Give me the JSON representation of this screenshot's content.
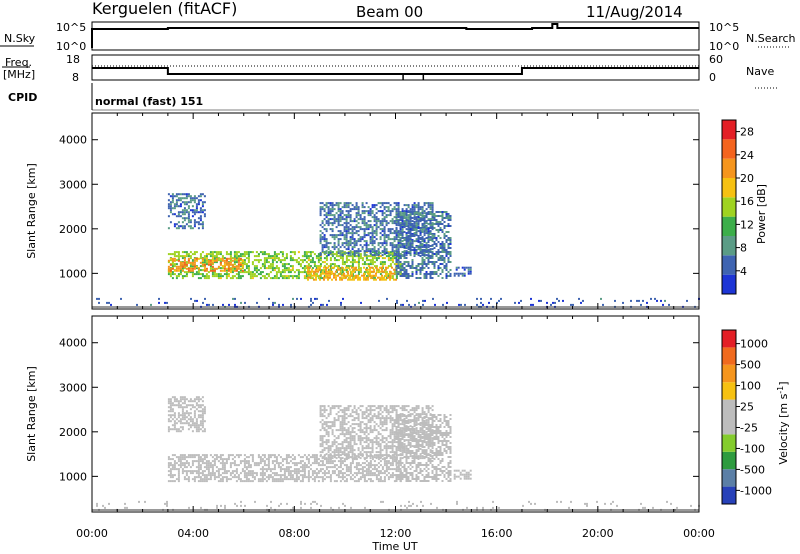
{
  "header": {
    "station": "Kerguelen (fitACF)",
    "beam": "Beam 00",
    "date": "11/Aug/2014"
  },
  "panels": {
    "nsky": {
      "left_label": "N.Sky",
      "left_ticks": [
        "10^5",
        "10^0"
      ],
      "right_ticks": [
        "10^5",
        "10^0"
      ],
      "right_label": "N.Search"
    },
    "freq": {
      "left_label": "Freq.",
      "left_unit": "[MHz]",
      "left_ticks": [
        "18",
        "8"
      ],
      "right_ticks": [
        "60",
        "0"
      ],
      "right_label": "Nave"
    },
    "cpid": {
      "label": "CPID",
      "mode": "normal (fast) 151"
    }
  },
  "time_axis": {
    "title": "Time UT",
    "ticks": [
      "00:00",
      "04:00",
      "08:00",
      "12:00",
      "16:00",
      "20:00",
      "00:00"
    ]
  },
  "colors": {
    "power": [
      "#1d35d5",
      "#3f64b1",
      "#5b9c86",
      "#3cae4a",
      "#9fd321",
      "#f6c112",
      "#f5951d",
      "#f4641e",
      "#e31f26"
    ],
    "velocity": [
      "#e31f26",
      "#f06a1e",
      "#f5951d",
      "#f6c112",
      "#bdbdbd",
      "#bdbdbd",
      "#84cc2d",
      "#2e9b3f",
      "#5b7fa6",
      "#2741b9"
    ]
  },
  "chart_data": [
    {
      "type": "heatmap",
      "title": "",
      "xlabel": "Time UT",
      "ylabel": "Slant Range [km]",
      "x_ticks": [
        "00:00",
        "04:00",
        "08:00",
        "12:00",
        "16:00",
        "20:00",
        "00:00"
      ],
      "y_ticks": [
        1000,
        2000,
        3000,
        4000
      ],
      "xlim_hours": [
        0,
        24
      ],
      "ylim": [
        200,
        4600
      ],
      "colorbar": {
        "label": "Power [dB]",
        "ticks": [
          4,
          8,
          12,
          16,
          20,
          24,
          28
        ],
        "range": [
          0,
          30
        ]
      },
      "regions": [
        {
          "t0": 3.0,
          "t1": 12.2,
          "r0": 900,
          "r1": 1500,
          "value": 14
        },
        {
          "t0": 3.0,
          "t1": 6.0,
          "r0": 1050,
          "r1": 1350,
          "value": 22
        },
        {
          "t0": 8.5,
          "t1": 12.0,
          "r0": 850,
          "r1": 1150,
          "value": 20
        },
        {
          "t0": 12.0,
          "t1": 14.2,
          "r0": 900,
          "r1": 2400,
          "value": 6
        },
        {
          "t0": 9.0,
          "t1": 13.5,
          "r0": 1400,
          "r1": 2600,
          "value": 6
        },
        {
          "t0": 14.3,
          "t1": 15.0,
          "r0": 950,
          "r1": 1150,
          "value": 5
        },
        {
          "t0": 3.0,
          "t1": 4.5,
          "r0": 2000,
          "r1": 2800,
          "value": 6
        },
        {
          "t0": 0.0,
          "t1": 24.0,
          "r0": 250,
          "r1": 450,
          "value": 4
        }
      ]
    },
    {
      "type": "heatmap",
      "title": "",
      "xlabel": "Time UT",
      "ylabel": "Slant Range [km]",
      "x_ticks": [
        "00:00",
        "04:00",
        "08:00",
        "12:00",
        "16:00",
        "20:00",
        "00:00"
      ],
      "y_ticks": [
        1000,
        2000,
        3000,
        4000
      ],
      "xlim_hours": [
        0,
        24
      ],
      "ylim": [
        200,
        4600
      ],
      "colorbar": {
        "label": "Velocity [m s^-1]",
        "ticks": [
          1000,
          500,
          100,
          25,
          -25,
          -100,
          -500,
          -1000
        ]
      },
      "regions": [
        {
          "t0": 3.0,
          "t1": 12.2,
          "r0": 900,
          "r1": 1500,
          "value": 0
        },
        {
          "t0": 12.0,
          "t1": 14.2,
          "r0": 900,
          "r1": 2400,
          "value": 0
        },
        {
          "t0": 9.0,
          "t1": 13.5,
          "r0": 1400,
          "r1": 2600,
          "value": 0
        },
        {
          "t0": 14.3,
          "t1": 15.0,
          "r0": 950,
          "r1": 1150,
          "value": -150
        },
        {
          "t0": 3.0,
          "t1": 4.5,
          "r0": 2000,
          "r1": 2800,
          "value": 0
        },
        {
          "t0": 0.0,
          "t1": 24.0,
          "r0": 250,
          "r1": 450,
          "value": 0
        }
      ]
    }
  ]
}
